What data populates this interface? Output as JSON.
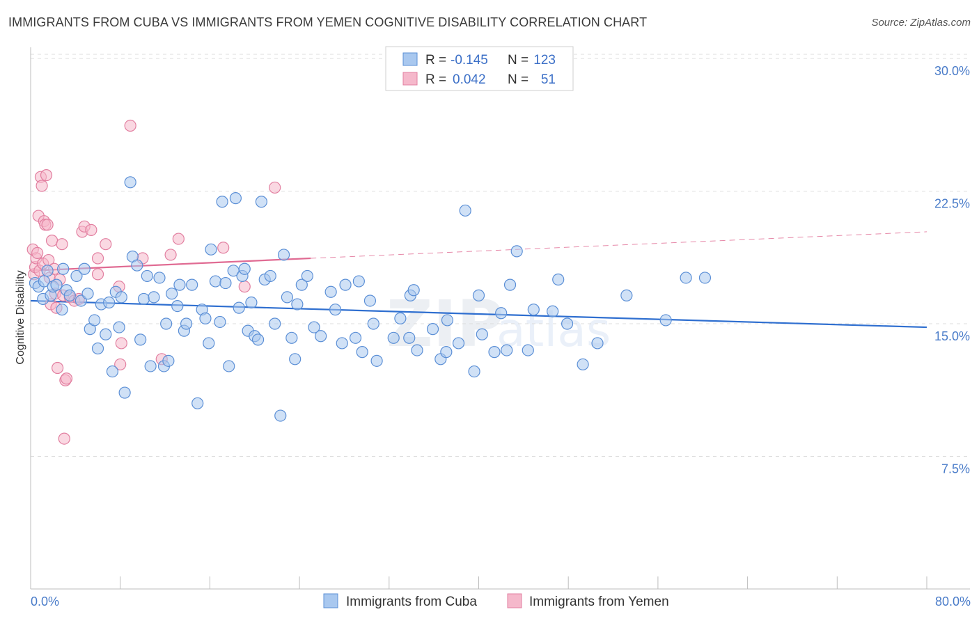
{
  "header": {
    "title": "IMMIGRANTS FROM CUBA VS IMMIGRANTS FROM YEMEN COGNITIVE DISABILITY CORRELATION CHART",
    "source": "Source: ZipAtlas.com"
  },
  "watermark": {
    "text_zip": "ZIP",
    "text_atlas": "atlas"
  },
  "colors": {
    "cuba_fill": "#a9c8ef",
    "cuba_stroke": "#5b8fd6",
    "cuba_line": "#2f6fd0",
    "yemen_fill": "#f5b8cb",
    "yemen_stroke": "#e27fa0",
    "yemen_line": "#e06b93",
    "tick_label": "#4a7cc9",
    "grid": "#dcdcdc"
  },
  "legend": {
    "r_label": "R =",
    "n_label": "N =",
    "rows": [
      {
        "series": "Immigrants from Cuba",
        "r": "-0.145",
        "n": "123"
      },
      {
        "series": "Immigrants from Yemen",
        "r": "0.042",
        "n": "51"
      }
    ]
  },
  "chart_data": {
    "type": "scatter",
    "title": "IMMIGRANTS FROM CUBA VS IMMIGRANTS FROM YEMEN COGNITIVE DISABILITY CORRELATION CHART",
    "xlabel": "",
    "ylabel": "Cognitive Disability",
    "xlim": [
      0,
      80
    ],
    "ylim": [
      0,
      31
    ],
    "x_tick_labels": [
      "0.0%",
      "80.0%"
    ],
    "y_ticks": [
      7.5,
      15.0,
      22.5,
      30.0
    ],
    "y_tick_labels": [
      "7.5%",
      "15.0%",
      "22.5%",
      "30.0%"
    ],
    "grid": "horizontal dashed",
    "legend_position": "top-center",
    "series": [
      {
        "name": "Immigrants from Cuba",
        "trend": {
          "x": [
            0,
            80
          ],
          "y": [
            16.3,
            14.8
          ],
          "style": "solid"
        },
        "points": [
          [
            0.4,
            17.3
          ],
          [
            0.7,
            17.1
          ],
          [
            1.1,
            16.4
          ],
          [
            1.2,
            17.4
          ],
          [
            1.5,
            18.0
          ],
          [
            1.8,
            16.6
          ],
          [
            2.0,
            17.1
          ],
          [
            2.3,
            17.2
          ],
          [
            2.8,
            15.8
          ],
          [
            2.9,
            18.1
          ],
          [
            3.2,
            16.9
          ],
          [
            3.5,
            16.6
          ],
          [
            4.1,
            17.7
          ],
          [
            4.5,
            16.3
          ],
          [
            4.8,
            18.1
          ],
          [
            5.1,
            16.7
          ],
          [
            5.3,
            14.7
          ],
          [
            5.7,
            15.2
          ],
          [
            6.0,
            13.6
          ],
          [
            6.3,
            16.1
          ],
          [
            6.7,
            14.4
          ],
          [
            7.0,
            16.2
          ],
          [
            7.3,
            12.3
          ],
          [
            7.6,
            16.8
          ],
          [
            7.9,
            14.8
          ],
          [
            8.1,
            16.5
          ],
          [
            8.4,
            11.1
          ],
          [
            8.9,
            23.0
          ],
          [
            9.1,
            18.8
          ],
          [
            9.5,
            18.3
          ],
          [
            9.8,
            14.1
          ],
          [
            10.1,
            16.4
          ],
          [
            10.4,
            17.7
          ],
          [
            10.7,
            12.6
          ],
          [
            11.0,
            16.5
          ],
          [
            11.5,
            17.6
          ],
          [
            11.9,
            12.6
          ],
          [
            12.1,
            15.0
          ],
          [
            12.3,
            12.9
          ],
          [
            12.6,
            16.7
          ],
          [
            13.1,
            16.0
          ],
          [
            13.3,
            17.2
          ],
          [
            13.7,
            14.6
          ],
          [
            13.9,
            15.0
          ],
          [
            14.4,
            17.2
          ],
          [
            14.9,
            10.5
          ],
          [
            15.3,
            15.8
          ],
          [
            15.6,
            15.3
          ],
          [
            15.9,
            13.9
          ],
          [
            16.1,
            19.2
          ],
          [
            16.5,
            17.4
          ],
          [
            16.9,
            15.1
          ],
          [
            17.1,
            21.9
          ],
          [
            17.4,
            17.3
          ],
          [
            17.7,
            12.6
          ],
          [
            18.1,
            18.0
          ],
          [
            18.3,
            22.1
          ],
          [
            18.6,
            15.9
          ],
          [
            18.9,
            17.7
          ],
          [
            19.1,
            18.1
          ],
          [
            19.4,
            14.6
          ],
          [
            19.7,
            16.2
          ],
          [
            20.0,
            14.3
          ],
          [
            20.3,
            14.1
          ],
          [
            20.6,
            21.9
          ],
          [
            20.9,
            17.5
          ],
          [
            21.4,
            17.7
          ],
          [
            21.8,
            15.0
          ],
          [
            22.3,
            9.8
          ],
          [
            22.6,
            18.9
          ],
          [
            22.9,
            16.5
          ],
          [
            23.3,
            14.2
          ],
          [
            23.6,
            13.0
          ],
          [
            23.8,
            16.1
          ],
          [
            24.2,
            17.2
          ],
          [
            24.7,
            17.7
          ],
          [
            25.3,
            14.8
          ],
          [
            25.9,
            14.3
          ],
          [
            26.8,
            16.8
          ],
          [
            27.2,
            15.8
          ],
          [
            27.8,
            13.9
          ],
          [
            28.1,
            17.2
          ],
          [
            29.0,
            14.2
          ],
          [
            29.3,
            17.4
          ],
          [
            29.6,
            13.4
          ],
          [
            30.3,
            16.3
          ],
          [
            30.6,
            15.0
          ],
          [
            30.9,
            12.9
          ],
          [
            32.4,
            14.2
          ],
          [
            33.0,
            15.3
          ],
          [
            33.8,
            14.2
          ],
          [
            33.9,
            16.6
          ],
          [
            34.2,
            16.9
          ],
          [
            34.5,
            13.5
          ],
          [
            35.9,
            14.7
          ],
          [
            36.6,
            13.0
          ],
          [
            37.1,
            13.4
          ],
          [
            37.2,
            15.2
          ],
          [
            38.2,
            13.9
          ],
          [
            38.8,
            21.4
          ],
          [
            39.6,
            12.3
          ],
          [
            40.0,
            16.6
          ],
          [
            40.3,
            14.4
          ],
          [
            41.4,
            13.4
          ],
          [
            42.0,
            15.6
          ],
          [
            42.5,
            13.5
          ],
          [
            42.8,
            17.2
          ],
          [
            43.4,
            19.1
          ],
          [
            44.4,
            13.5
          ],
          [
            44.9,
            15.8
          ],
          [
            46.6,
            15.7
          ],
          [
            47.1,
            17.5
          ],
          [
            47.9,
            15.0
          ],
          [
            49.3,
            12.7
          ],
          [
            50.6,
            13.9
          ],
          [
            53.2,
            16.6
          ],
          [
            56.7,
            15.2
          ],
          [
            58.5,
            17.6
          ],
          [
            60.2,
            17.6
          ]
        ]
      },
      {
        "name": "Immigrants from Yemen",
        "trend": {
          "x": [
            0,
            25
          ],
          "y": [
            18.0,
            18.7
          ],
          "style": "solid",
          "extended": {
            "x": [
              25,
              80
            ],
            "y": [
              18.7,
              20.2
            ],
            "style": "dashed"
          }
        },
        "points": [
          [
            0.2,
            19.2
          ],
          [
            0.3,
            17.8
          ],
          [
            0.4,
            18.2
          ],
          [
            0.5,
            18.7
          ],
          [
            0.6,
            19.0
          ],
          [
            0.7,
            21.1
          ],
          [
            0.8,
            18.0
          ],
          [
            0.9,
            23.3
          ],
          [
            1.0,
            22.8
          ],
          [
            1.1,
            18.4
          ],
          [
            1.2,
            20.8
          ],
          [
            1.3,
            20.6
          ],
          [
            1.4,
            23.4
          ],
          [
            1.5,
            20.6
          ],
          [
            1.6,
            18.6
          ],
          [
            1.7,
            17.6
          ],
          [
            1.8,
            16.1
          ],
          [
            1.9,
            19.7
          ],
          [
            2.1,
            18.1
          ],
          [
            2.2,
            16.7
          ],
          [
            2.3,
            15.9
          ],
          [
            2.4,
            12.5
          ],
          [
            2.6,
            17.5
          ],
          [
            2.8,
            19.5
          ],
          [
            2.9,
            16.6
          ],
          [
            3.0,
            8.5
          ],
          [
            3.1,
            11.8
          ],
          [
            3.2,
            11.9
          ],
          [
            3.5,
            16.5
          ],
          [
            3.9,
            16.3
          ],
          [
            4.3,
            16.4
          ],
          [
            4.6,
            20.2
          ],
          [
            4.8,
            20.5
          ],
          [
            5.4,
            20.3
          ],
          [
            6.0,
            17.8
          ],
          [
            6.0,
            18.7
          ],
          [
            6.7,
            19.5
          ],
          [
            7.9,
            17.1
          ],
          [
            8.0,
            12.7
          ],
          [
            8.1,
            13.9
          ],
          [
            8.9,
            26.2
          ],
          [
            10.0,
            18.7
          ],
          [
            11.7,
            13.0
          ],
          [
            12.5,
            18.9
          ],
          [
            13.2,
            19.8
          ],
          [
            17.2,
            19.3
          ],
          [
            19.1,
            17.1
          ],
          [
            21.8,
            22.7
          ]
        ]
      }
    ]
  },
  "bottom_legend": [
    {
      "label": "Immigrants from Cuba"
    },
    {
      "label": "Immigrants from Yemen"
    }
  ]
}
